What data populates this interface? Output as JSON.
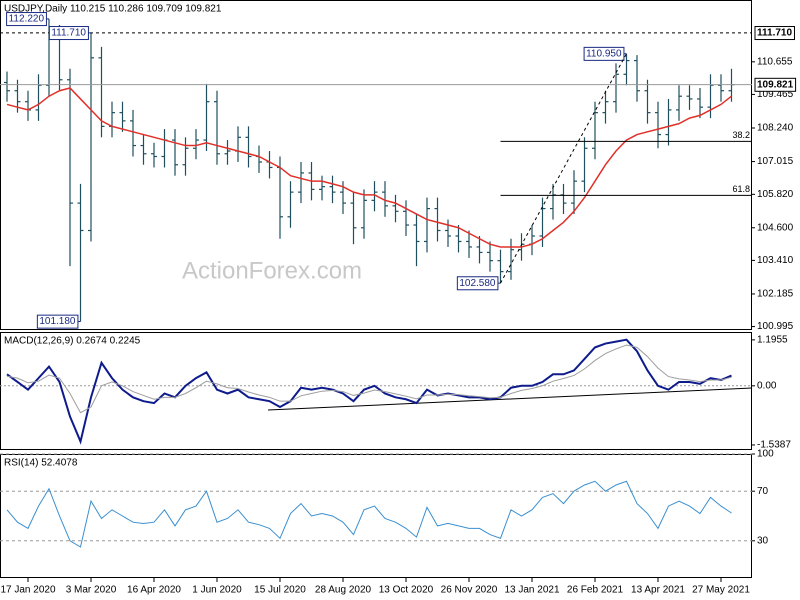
{
  "chart_data": [
    {
      "type": "ohlc",
      "title": "USDJPY,Daily  110.215 110.286 109.709 109.821",
      "watermark": "ActionForex.com",
      "color": "#1f4f5f",
      "categories": [
        null,
        null,
        "17 Jan 2020",
        null,
        null,
        null,
        null,
        null,
        "3 Mar 2020",
        null,
        null,
        null,
        null,
        null,
        "16 Apr 2020",
        null,
        null,
        null,
        null,
        null,
        "1 Jun 2020",
        null,
        null,
        null,
        null,
        null,
        "15 Jul 2020",
        null,
        null,
        null,
        null,
        null,
        "28 Aug 2020",
        null,
        null,
        null,
        null,
        null,
        "13 Oct 2020",
        null,
        null,
        null,
        null,
        null,
        "26 Nov 2020",
        null,
        null,
        null,
        null,
        null,
        "13 Jan 2021",
        null,
        null,
        null,
        null,
        null,
        "26 Feb 2021",
        null,
        null,
        null,
        null,
        null,
        "13 Apr 2021",
        null,
        null,
        null,
        null,
        null,
        "27 May 2021",
        null
      ],
      "open": [
        109.9,
        109.6,
        109.2,
        108.9,
        109.8,
        111.8,
        110.0,
        105.5,
        104.5,
        110.8,
        108.3,
        108.8,
        108.5,
        107.6,
        107.3,
        107.2,
        107.8,
        106.9,
        107.5,
        107.8,
        109.2,
        107.3,
        107.4,
        107.9,
        107.2,
        107.0,
        106.8,
        105.0,
        105.9,
        106.6,
        106.0,
        106.1,
        105.9,
        105.5,
        104.6,
        105.6,
        105.9,
        105.4,
        105.2,
        104.7,
        104.1,
        105.3,
        104.5,
        104.3,
        104.1,
        103.9,
        103.7,
        103.4,
        103.0,
        103.8,
        104.0,
        104.3,
        105.3,
        105.8,
        105.5,
        106.3,
        107.5,
        108.8,
        109.2,
        110.2,
        110.7,
        109.6,
        108.8,
        108.0,
        108.9,
        109.4,
        109.3,
        109.0,
        109.8,
        109.6
      ],
      "high": [
        110.3,
        110.0,
        109.6,
        110.2,
        112.22,
        112.0,
        110.4,
        106.2,
        111.71,
        111.2,
        109.2,
        109.2,
        108.9,
        108.0,
        107.7,
        108.2,
        108.2,
        107.9,
        108.2,
        109.85,
        109.6,
        107.8,
        108.3,
        108.3,
        107.6,
        107.4,
        107.2,
        106.3,
        107.0,
        107.0,
        106.5,
        106.5,
        106.3,
        105.9,
        106.0,
        106.3,
        106.3,
        105.8,
        105.6,
        105.1,
        105.7,
        105.7,
        104.9,
        104.7,
        104.5,
        104.3,
        104.1,
        103.8,
        104.2,
        104.4,
        104.7,
        105.7,
        106.2,
        106.2,
        106.7,
        107.9,
        109.2,
        109.6,
        110.6,
        110.95,
        110.9,
        110.0,
        109.2,
        109.3,
        109.8,
        109.8,
        109.7,
        110.2,
        110.2,
        110.4
      ],
      "low": [
        109.2,
        108.8,
        108.5,
        108.5,
        109.4,
        109.6,
        103.2,
        101.18,
        104.1,
        107.9,
        107.9,
        108.1,
        107.2,
        106.9,
        106.8,
        106.8,
        106.5,
        106.5,
        107.1,
        107.4,
        106.9,
        106.9,
        107.0,
        106.8,
        106.6,
        106.4,
        104.2,
        104.6,
        105.5,
        105.6,
        105.6,
        105.5,
        105.1,
        104.0,
        104.2,
        105.2,
        105.0,
        104.8,
        104.3,
        103.2,
        103.7,
        104.1,
        103.9,
        103.7,
        103.5,
        103.3,
        103.0,
        102.58,
        102.7,
        103.4,
        103.6,
        103.9,
        104.9,
        105.1,
        105.1,
        105.9,
        107.1,
        108.4,
        108.8,
        109.8,
        109.2,
        108.4,
        107.5,
        107.6,
        108.5,
        108.9,
        108.6,
        108.6,
        109.2,
        109.2
      ],
      "close": [
        109.6,
        109.2,
        108.9,
        109.8,
        111.8,
        110.0,
        105.5,
        104.5,
        110.8,
        108.3,
        108.8,
        108.5,
        107.6,
        107.3,
        107.2,
        107.8,
        106.9,
        107.5,
        107.8,
        109.2,
        107.3,
        107.4,
        107.9,
        107.2,
        107.0,
        106.8,
        105.0,
        105.9,
        106.6,
        106.0,
        106.1,
        105.9,
        105.5,
        104.6,
        105.6,
        105.9,
        105.4,
        105.2,
        104.7,
        104.1,
        105.3,
        104.5,
        104.3,
        104.1,
        103.9,
        103.7,
        103.4,
        103.0,
        103.8,
        104.0,
        104.3,
        105.3,
        105.8,
        105.5,
        106.3,
        107.5,
        108.8,
        109.2,
        110.2,
        110.7,
        109.6,
        108.8,
        108.0,
        108.9,
        109.4,
        109.3,
        109.0,
        109.8,
        109.6,
        109.821
      ],
      "overlays": [
        {
          "color": "#e0302a",
          "values": [
            109.1,
            109.0,
            108.9,
            109.1,
            109.4,
            109.6,
            109.7,
            109.3,
            108.9,
            108.5,
            108.3,
            108.2,
            108.1,
            108.0,
            107.9,
            107.8,
            107.7,
            107.6,
            107.6,
            107.7,
            107.6,
            107.5,
            107.4,
            107.3,
            107.2,
            107.0,
            106.8,
            106.5,
            106.4,
            106.3,
            106.3,
            106.2,
            106.1,
            105.9,
            105.8,
            105.8,
            105.6,
            105.5,
            105.3,
            105.1,
            104.9,
            104.8,
            104.7,
            104.6,
            104.4,
            104.2,
            104.0,
            103.9,
            103.9,
            103.9,
            104.0,
            104.2,
            104.5,
            104.8,
            105.2,
            105.7,
            106.3,
            106.9,
            107.4,
            107.8,
            108.0,
            108.1,
            108.2,
            108.3,
            108.4,
            108.6,
            108.7,
            108.9,
            109.1,
            109.4
          ]
        }
      ],
      "ylim": [
        100.87,
        112.91
      ],
      "yticks": [
        110.655,
        109.465,
        {
          "value": 108.24,
          "label": "108.240"
        },
        107.015,
        {
          "value": 105.82,
          "label": "105.820"
        },
        {
          "value": 104.6,
          "label": "104.600"
        },
        {
          "value": 103.41,
          "label": "103.410"
        },
        102.185,
        100.995
      ],
      "price_lines": [
        {
          "value": 111.71,
          "label": "111.710",
          "style": "dashed"
        },
        {
          "value": 109.821,
          "style": "solid"
        }
      ],
      "annotations": [
        {
          "value": 112.22,
          "label": "112.220"
        },
        {
          "value": 111.71,
          "label": "111.710"
        },
        {
          "value": 101.18,
          "label": "101.180"
        },
        {
          "value": 102.58,
          "label": "102.580"
        },
        {
          "value": 110.95,
          "label": "110.950"
        }
      ],
      "fibonacci": [
        {
          "value": 107.75,
          "label": "38.2"
        },
        {
          "value": 105.78,
          "label": "61.8"
        }
      ],
      "grid": false
    },
    {
      "type": "line",
      "title": "MACD(12,26,9) 0.2674 0.2245",
      "series": [
        {
          "color": "#0d1b8c",
          "values": [
            0.3,
            0.1,
            -0.1,
            0.2,
            0.5,
            0.1,
            -0.8,
            -1.45,
            -0.3,
            0.6,
            0.2,
            -0.1,
            -0.3,
            -0.4,
            -0.45,
            -0.2,
            -0.3,
            0.0,
            0.2,
            0.35,
            -0.1,
            -0.2,
            -0.1,
            -0.3,
            -0.35,
            -0.4,
            -0.55,
            -0.4,
            -0.05,
            -0.1,
            -0.05,
            -0.1,
            -0.2,
            -0.4,
            -0.1,
            0.0,
            -0.2,
            -0.3,
            -0.35,
            -0.45,
            -0.1,
            -0.25,
            -0.2,
            -0.25,
            -0.3,
            -0.3,
            -0.35,
            -0.3,
            -0.05,
            0.0,
            0.0,
            0.1,
            0.3,
            0.3,
            0.4,
            0.7,
            1.0,
            1.1,
            1.15,
            1.2,
            0.9,
            0.4,
            0.0,
            -0.1,
            0.1,
            0.1,
            0.05,
            0.2,
            0.15,
            0.2674
          ]
        },
        {
          "color": "#9e9e9e",
          "values": [
            0.25,
            0.2,
            0.08,
            0.12,
            0.28,
            0.2,
            -0.2,
            -0.7,
            -0.55,
            0.0,
            0.1,
            0.0,
            -0.15,
            -0.25,
            -0.35,
            -0.3,
            -0.3,
            -0.2,
            -0.05,
            0.12,
            0.05,
            -0.05,
            -0.07,
            -0.16,
            -0.24,
            -0.3,
            -0.4,
            -0.4,
            -0.26,
            -0.2,
            -0.14,
            -0.12,
            -0.15,
            -0.25,
            -0.19,
            -0.11,
            -0.15,
            -0.21,
            -0.27,
            -0.34,
            -0.24,
            -0.24,
            -0.22,
            -0.23,
            -0.26,
            -0.28,
            -0.31,
            -0.3,
            -0.2,
            -0.12,
            -0.07,
            0.0,
            0.12,
            0.19,
            0.27,
            0.44,
            0.66,
            0.84,
            0.96,
            1.06,
            1.0,
            0.76,
            0.46,
            0.24,
            0.18,
            0.15,
            0.11,
            0.15,
            0.15,
            0.2245
          ]
        }
      ],
      "ylim": [
        -1.67,
        1.4
      ],
      "yticks": [
        1.1955,
        {
          "value": 0,
          "label": "0.00"
        },
        -1.5387
      ],
      "zero_line": true,
      "grid": false
    },
    {
      "type": "line",
      "title": "RSI(14) 52.4078",
      "series": [
        {
          "color": "#3a8fd0",
          "values": [
            55,
            45,
            40,
            58,
            72,
            50,
            30,
            25,
            62,
            48,
            55,
            50,
            45,
            44,
            45,
            55,
            42,
            55,
            58,
            70,
            45,
            48,
            55,
            45,
            43,
            40,
            32,
            52,
            60,
            50,
            52,
            50,
            45,
            35,
            55,
            58,
            48,
            45,
            40,
            33,
            57,
            42,
            44,
            42,
            40,
            40,
            35,
            32,
            55,
            50,
            55,
            65,
            68,
            60,
            70,
            75,
            78,
            70,
            75,
            78,
            60,
            52,
            40,
            58,
            62,
            58,
            52,
            65,
            58,
            52.4078
          ]
        }
      ],
      "ylim": [
        0,
        100
      ],
      "yticks": [
        100,
        70,
        30
      ],
      "grid": true
    }
  ]
}
